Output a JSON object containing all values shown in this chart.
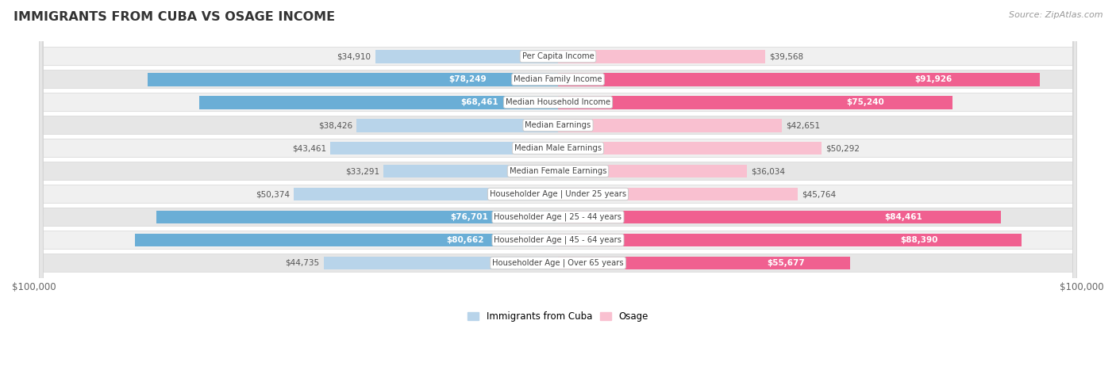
{
  "title": "IMMIGRANTS FROM CUBA VS OSAGE INCOME",
  "source": "Source: ZipAtlas.com",
  "categories": [
    "Per Capita Income",
    "Median Family Income",
    "Median Household Income",
    "Median Earnings",
    "Median Male Earnings",
    "Median Female Earnings",
    "Householder Age | Under 25 years",
    "Householder Age | 25 - 44 years",
    "Householder Age | 45 - 64 years",
    "Householder Age | Over 65 years"
  ],
  "cuba_values": [
    34910,
    78249,
    68461,
    38426,
    43461,
    33291,
    50374,
    76701,
    80662,
    44735
  ],
  "osage_values": [
    39568,
    91926,
    75240,
    42651,
    50292,
    36034,
    45764,
    84461,
    88390,
    55677
  ],
  "cuba_labels": [
    "$34,910",
    "$78,249",
    "$68,461",
    "$38,426",
    "$43,461",
    "$33,291",
    "$50,374",
    "$76,701",
    "$80,662",
    "$44,735"
  ],
  "osage_labels": [
    "$39,568",
    "$91,926",
    "$75,240",
    "$42,651",
    "$50,292",
    "$36,034",
    "$45,764",
    "$84,461",
    "$88,390",
    "$55,677"
  ],
  "max_value": 100000,
  "cuba_color_light": "#b8d4ea",
  "cuba_color_dark": "#6aaed6",
  "osage_color_light": "#f9c0d0",
  "osage_color_dark": "#f06090",
  "background_color": "#ffffff",
  "row_bg_light": "#f2f2f2",
  "row_bg_dark": "#e8e8e8",
  "bar_height": 0.58,
  "legend_cuba": "Immigrants from Cuba",
  "legend_osage": "Osage",
  "cuba_inside_threshold": 55000,
  "osage_inside_threshold": 55000
}
